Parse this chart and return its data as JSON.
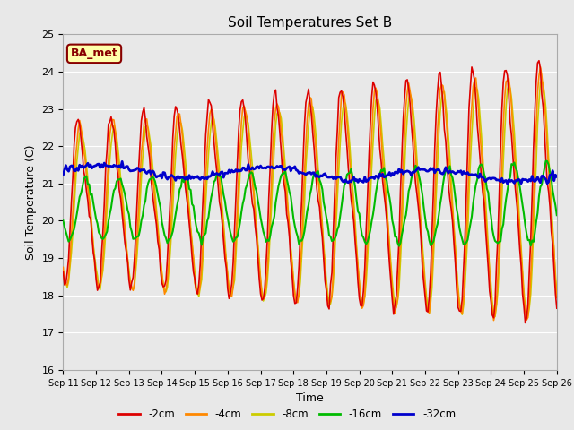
{
  "title": "Soil Temperatures Set B",
  "xlabel": "Time",
  "ylabel": "Soil Temperature (C)",
  "ylim": [
    16.0,
    25.0
  ],
  "yticks": [
    16.0,
    17.0,
    18.0,
    19.0,
    20.0,
    21.0,
    22.0,
    23.0,
    24.0,
    25.0
  ],
  "legend_labels": [
    "-2cm",
    "-4cm",
    "-8cm",
    "-16cm",
    "-32cm"
  ],
  "legend_colors": [
    "#dd0000",
    "#ff8800",
    "#cccc00",
    "#00bb00",
    "#0000cc"
  ],
  "line_widths": [
    1.2,
    1.2,
    1.2,
    1.5,
    2.0
  ],
  "annotation_text": "BA_met",
  "annotation_color": "#880000",
  "annotation_bg": "#ffffaa",
  "fig_facecolor": "#e8e8e8",
  "plot_facecolor": "#e8e8e8",
  "xtick_labels": [
    "Sep 11",
    "Sep 12",
    "Sep 13",
    "Sep 14",
    "Sep 15",
    "Sep 16",
    "Sep 17",
    "Sep 18",
    "Sep 19",
    "Sep 20",
    "Sep 21",
    "Sep 22",
    "Sep 23",
    "Sep 24",
    "Sep 25",
    "Sep 26"
  ],
  "figsize": [
    6.4,
    4.8
  ],
  "dpi": 100
}
